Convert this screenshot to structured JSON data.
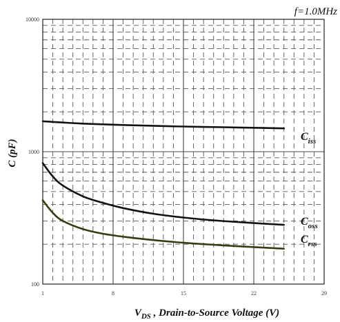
{
  "chart_data": {
    "type": "line",
    "annotation": "f=1.0MHz",
    "xlabel_main": "V",
    "xlabel_sub": "DS",
    "xlabel_rest": " , Drain-to-Source Voltage (V)",
    "ylabel": "C (pF)",
    "x_ticks": [
      "1",
      "8",
      "15",
      "22",
      "29"
    ],
    "y_ticks": [
      "100",
      "1000",
      "10000"
    ],
    "xlim": [
      1,
      29
    ],
    "ylim": [
      100,
      10000
    ],
    "yscale": "log",
    "grid": true,
    "series": [
      {
        "label_main": "C",
        "label_sub": "iss",
        "color": "#111111",
        "x": [
          1,
          3,
          5,
          8,
          11,
          15,
          19,
          23,
          25
        ],
        "y": [
          1700,
          1660,
          1630,
          1600,
          1575,
          1550,
          1530,
          1510,
          1500
        ]
      },
      {
        "label_main": "C",
        "label_sub": "oss",
        "color": "#111111",
        "x": [
          1,
          2,
          3,
          5,
          7,
          9,
          12,
          15,
          18,
          21,
          25
        ],
        "y": [
          820,
          650,
          555,
          460,
          410,
          375,
          340,
          318,
          303,
          292,
          280
        ]
      },
      {
        "label_main": "C",
        "label_sub": "rss",
        "color": "#3a3a10",
        "x": [
          1,
          2,
          3,
          5,
          7,
          9,
          12,
          15,
          18,
          21,
          25
        ],
        "y": [
          430,
          345,
          300,
          260,
          240,
          228,
          215,
          205,
          198,
          192,
          185
        ]
      }
    ]
  }
}
